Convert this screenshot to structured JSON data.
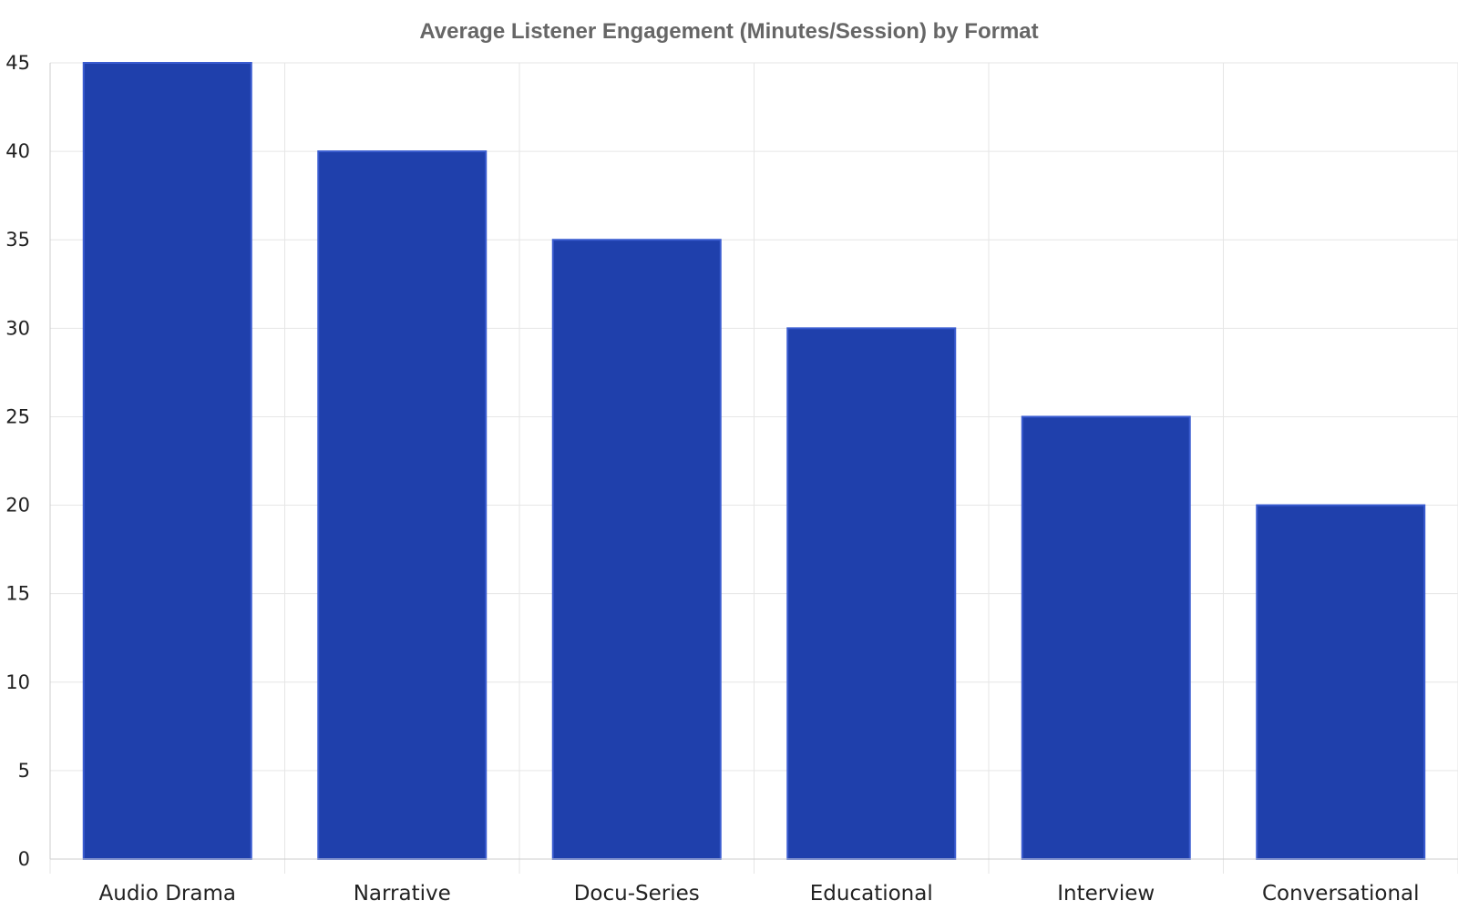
{
  "chart_data": {
    "type": "bar",
    "title": "Average Listener Engagement (Minutes/Session) by Format",
    "xlabel": "",
    "ylabel": "",
    "categories": [
      "Audio Drama",
      "Narrative",
      "Docu-Series",
      "Educational",
      "Interview",
      "Conversational"
    ],
    "values": [
      45,
      40,
      35,
      30,
      25,
      20
    ],
    "ylim": [
      0,
      45
    ],
    "yticks": [
      0,
      5,
      10,
      15,
      20,
      25,
      30,
      35,
      40,
      45
    ],
    "grid": true,
    "legend": "none",
    "colors": {
      "bar_fill": "#1f40ac",
      "bar_stroke": "#3a5cd0",
      "grid": "#e6e6e6",
      "axis": "#cccccc",
      "title": "#666666",
      "text": "#222222"
    }
  }
}
